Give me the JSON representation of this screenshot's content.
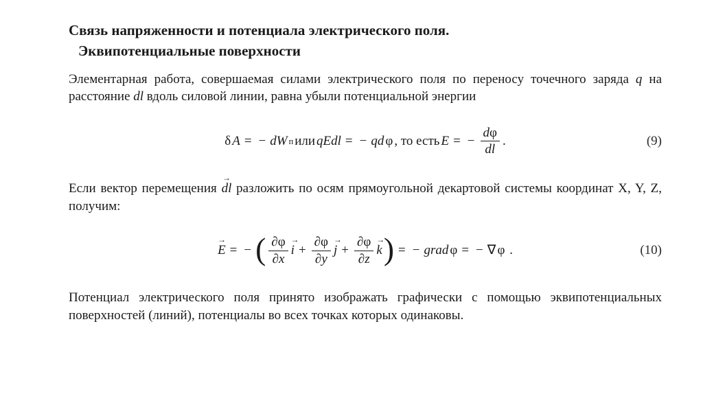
{
  "colors": {
    "text": "#1a1a1a",
    "background": "#ffffff"
  },
  "typography": {
    "body_family": "Times New Roman",
    "body_size_pt": 14,
    "title_size_pt": 16,
    "title_weight": "bold"
  },
  "title": {
    "line1": "Связь напряженности и потенциала электрического поля.",
    "line2": "Эквипотенциальные поверхности"
  },
  "paragraphs": {
    "p1": "Элементарная работа, совершаемая силами электрического поля по переносу точечного заряда q на расстояние dl вдоль силовой линии, равна убыли потенциальной энергии",
    "p2_prefix": "Если вектор перемещения ",
    "p2_vec": "dl",
    "p2_suffix": "  разложить по осям прямоугольной декартовой системы координат X, Y, Z, получим:",
    "p3": "Потенциал электрического поля принято изображать графически с помощью эквипотенциальных поверхностей (линий), потенциалы во всех точках которых одинаковы."
  },
  "equations": {
    "eq9": {
      "number": "(9)",
      "parts": {
        "lhs1": "δA",
        "eq": " = ",
        "rhs1": "−dW",
        "rhs1_sub": "п",
        "sep1": " или ",
        "lhs2": "qEdl",
        "rhs2": "−qdφ",
        "sep2": ", то есть ",
        "lhs3": "E",
        "minus": "−",
        "frac_num": "dφ",
        "frac_den": "dl",
        "tail": "."
      }
    },
    "eq10": {
      "number": "(10)",
      "parts": {
        "lhs_vec": "E",
        "eq": " = ",
        "minus": "−",
        "d": "∂φ",
        "dx": "∂x",
        "dy": "∂y",
        "dz": "∂z",
        "i": "i",
        "j": "j",
        "k": "k",
        "plus": " + ",
        "mid": " = −",
        "grad": "grad",
        "phi": "φ",
        "nabla": " = −∇φ .",
        "nabla_sym": "∇"
      }
    }
  }
}
